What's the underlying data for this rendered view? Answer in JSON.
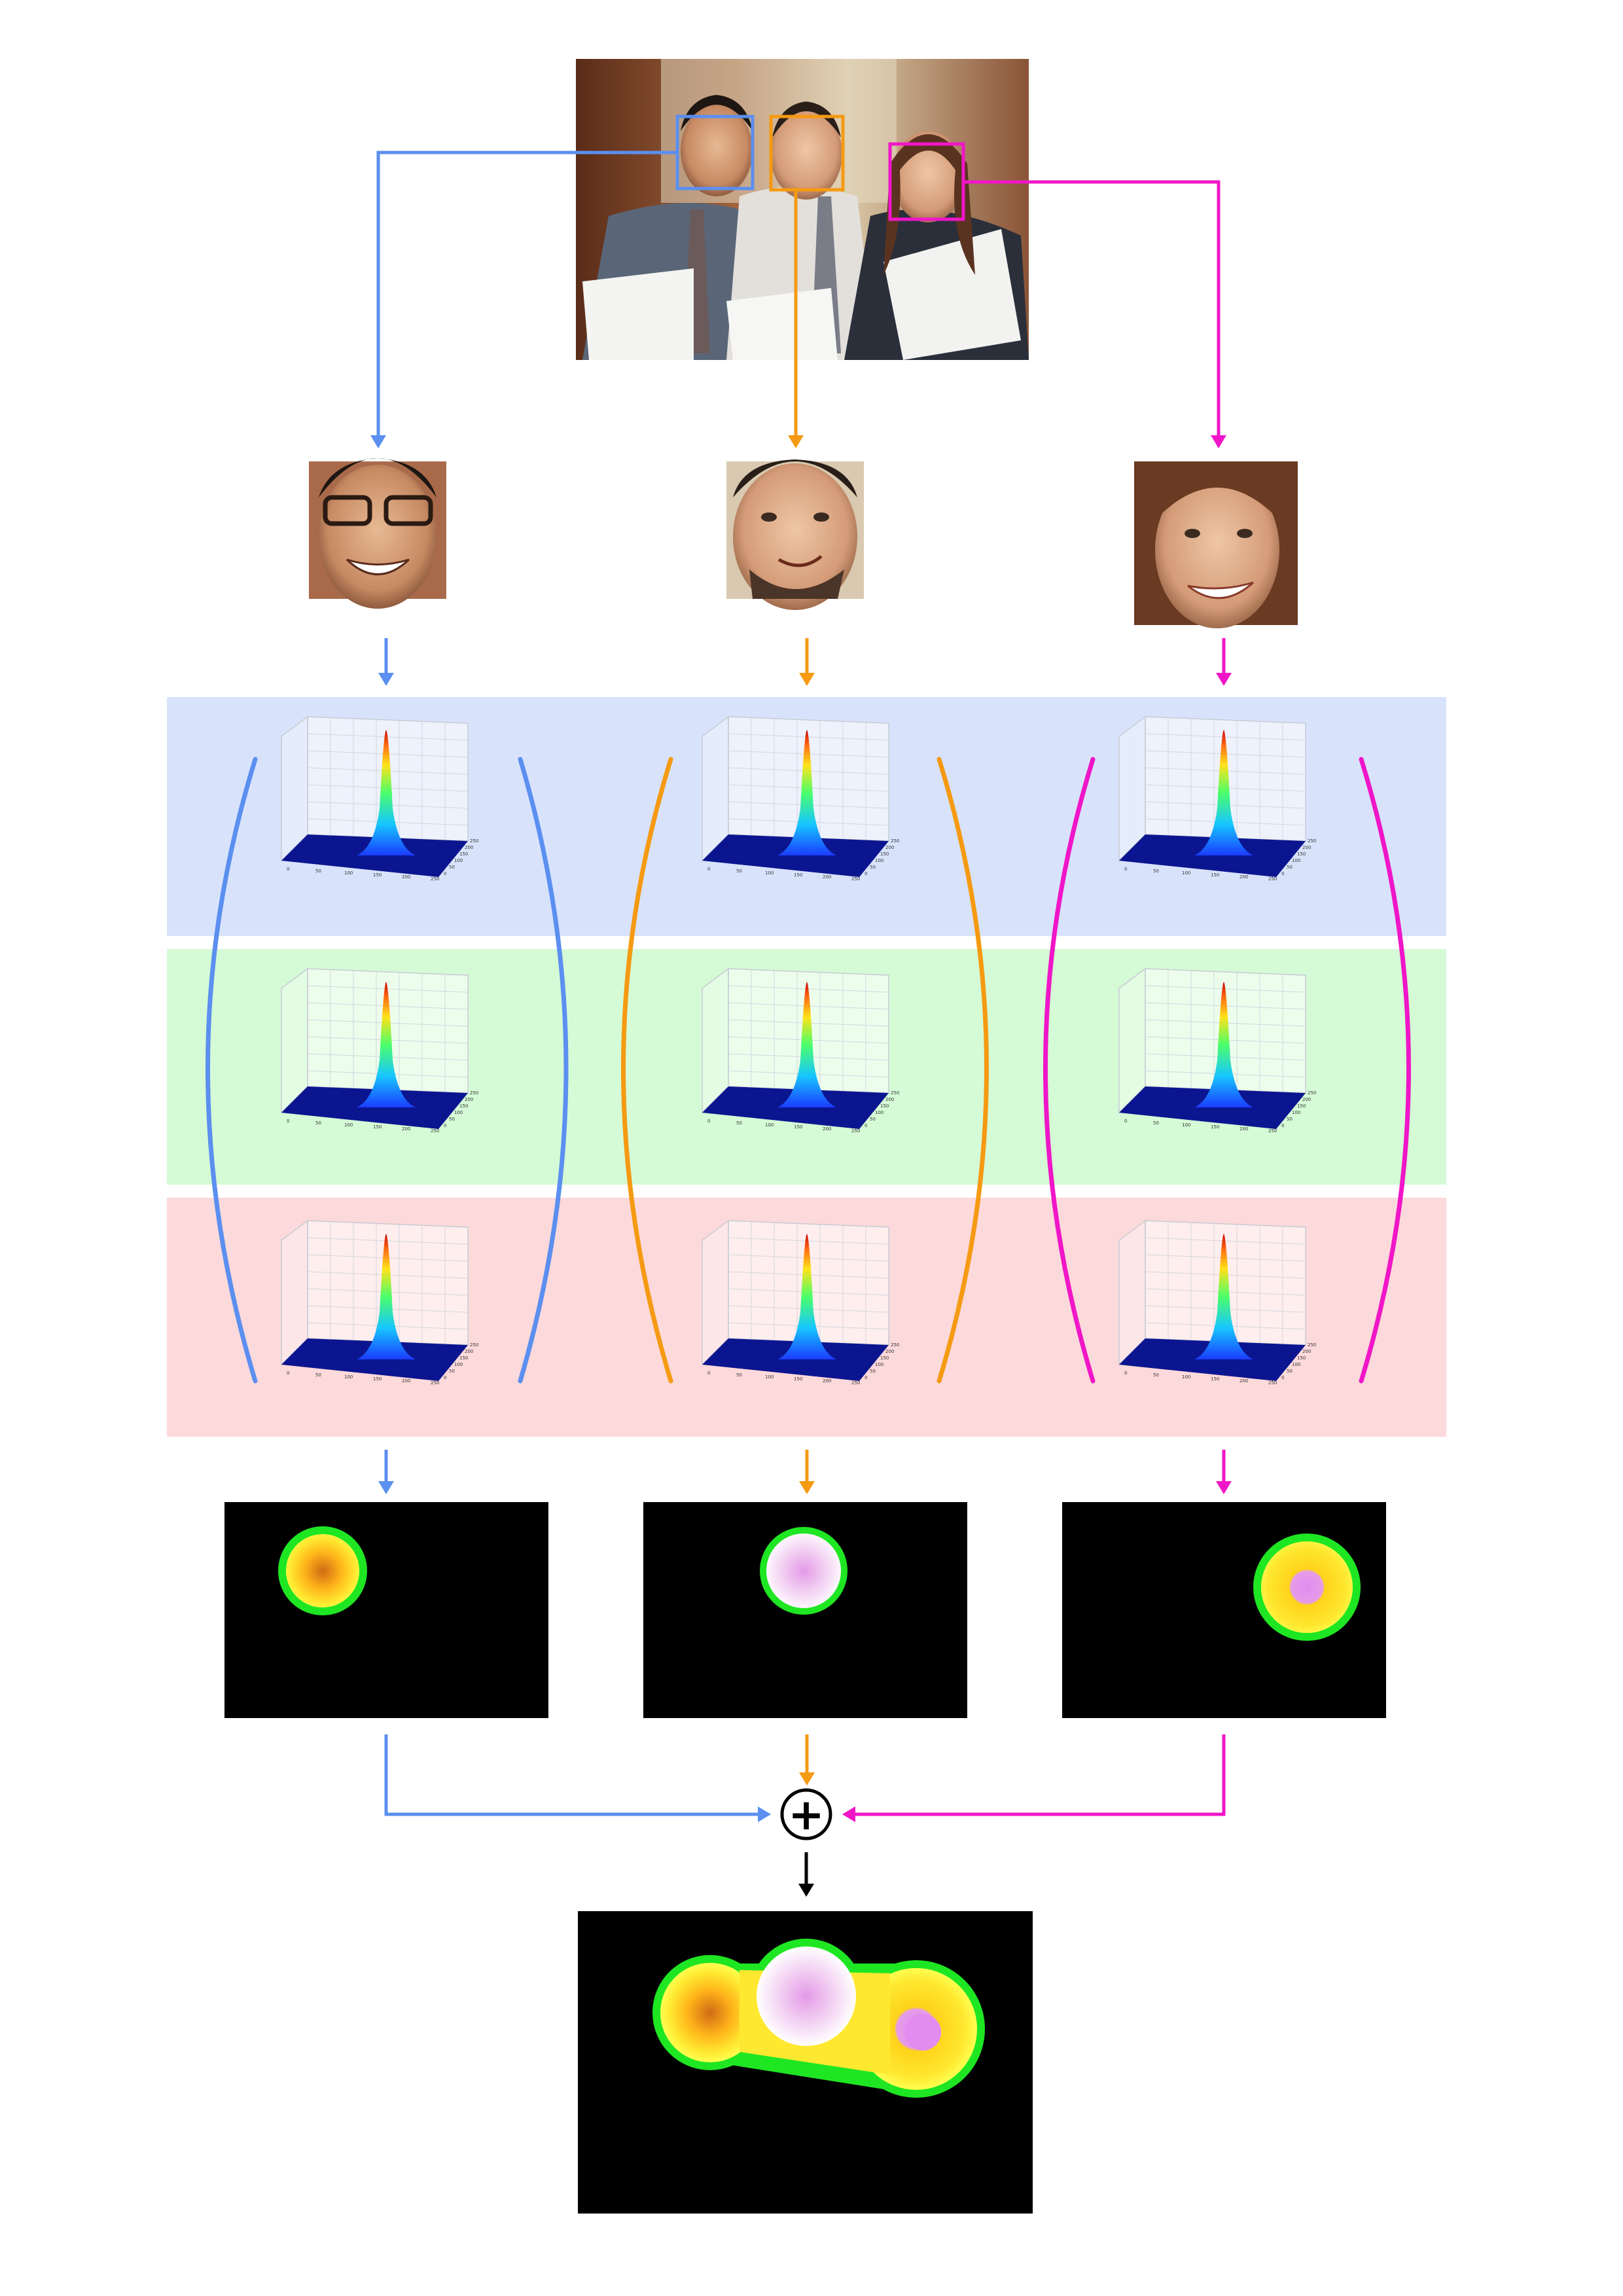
{
  "figure": {
    "plus_symbol": "+",
    "people": [
      {
        "id": "person-1",
        "color": "#5b8ff0",
        "heatmap": "warm"
      },
      {
        "id": "person-2",
        "color": "#f59a12",
        "heatmap": "pink"
      },
      {
        "id": "person-3",
        "color": "#f016c8",
        "heatmap": "warm-pink-core"
      }
    ],
    "band_colors": [
      "#d8e3fb",
      "#d5fad6",
      "#fcd9da"
    ],
    "surface_plot_tick_labels": {
      "x": [
        "0",
        "50",
        "100",
        "150",
        "200",
        "250"
      ],
      "y": [
        "0",
        "50",
        "100",
        "150",
        "200",
        "250"
      ]
    },
    "canvas_color": "#000000",
    "ring_colors": {
      "green": "#1fe622",
      "white": "#ffffff"
    },
    "heatmap_colors": {
      "warm_core": "#d06a14",
      "warm_mid": "#ffd21a",
      "warm_edge": "#ffff40",
      "pink_core": "#e39ae6",
      "pink_edge": "#ffffff",
      "violet_core": "#e28cf0"
    }
  }
}
